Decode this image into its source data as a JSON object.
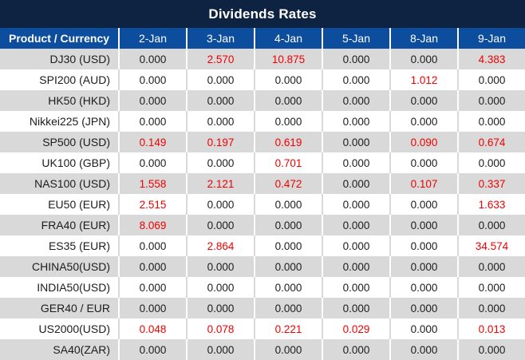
{
  "title": "Dividends Rates",
  "colors": {
    "title_bg": "#0e2242",
    "header_bg": "#0d4d9e",
    "header_text": "#ffffff",
    "row_alt_bg": "#d9d9d9",
    "row_bg": "#ffffff",
    "value_text": "#1c1c1c",
    "nonzero_value_red": "#f20000"
  },
  "chart_data": {
    "type": "table",
    "title": "Dividends Rates",
    "corner_header": "Product / Currency",
    "columns": [
      "2-Jan",
      "3-Jan",
      "4-Jan",
      "5-Jan",
      "8-Jan",
      "9-Jan"
    ],
    "rows": [
      {
        "product": "DJ30 (USD)",
        "values": [
          "0.000",
          "2.570",
          "10.875",
          "0.000",
          "0.000",
          "4.383"
        ]
      },
      {
        "product": "SPI200 (AUD)",
        "values": [
          "0.000",
          "0.000",
          "0.000",
          "0.000",
          "1.012",
          "0.000"
        ]
      },
      {
        "product": "HK50 (HKD)",
        "values": [
          "0.000",
          "0.000",
          "0.000",
          "0.000",
          "0.000",
          "0.000"
        ]
      },
      {
        "product": "Nikkei225 (JPN)",
        "values": [
          "0.000",
          "0.000",
          "0.000",
          "0.000",
          "0.000",
          "0.000"
        ]
      },
      {
        "product": "SP500 (USD)",
        "values": [
          "0.149",
          "0.197",
          "0.619",
          "0.000",
          "0.090",
          "0.674"
        ]
      },
      {
        "product": "UK100 (GBP)",
        "values": [
          "0.000",
          "0.000",
          "0.701",
          "0.000",
          "0.000",
          "0.000"
        ]
      },
      {
        "product": "NAS100 (USD)",
        "values": [
          "1.558",
          "2.121",
          "0.472",
          "0.000",
          "0.107",
          "0.337"
        ]
      },
      {
        "product": "EU50 (EUR)",
        "values": [
          "2.515",
          "0.000",
          "0.000",
          "0.000",
          "0.000",
          "1.633"
        ]
      },
      {
        "product": "FRA40 (EUR)",
        "values": [
          "8.069",
          "0.000",
          "0.000",
          "0.000",
          "0.000",
          "0.000"
        ]
      },
      {
        "product": "ES35 (EUR)",
        "values": [
          "0.000",
          "2.864",
          "0.000",
          "0.000",
          "0.000",
          "34.574"
        ]
      },
      {
        "product": "CHINA50(USD)",
        "values": [
          "0.000",
          "0.000",
          "0.000",
          "0.000",
          "0.000",
          "0.000"
        ]
      },
      {
        "product": "INDIA50(USD)",
        "values": [
          "0.000",
          "0.000",
          "0.000",
          "0.000",
          "0.000",
          "0.000"
        ]
      },
      {
        "product": "GER40 / EUR",
        "values": [
          "0.000",
          "0.000",
          "0.000",
          "0.000",
          "0.000",
          "0.000"
        ]
      },
      {
        "product": "US2000(USD)",
        "values": [
          "0.048",
          "0.078",
          "0.221",
          "0.029",
          "0.000",
          "0.013"
        ]
      },
      {
        "product": "SA40(ZAR)",
        "values": [
          "0.000",
          "0.000",
          "0.000",
          "0.000",
          "0.000",
          "0.000"
        ]
      }
    ],
    "value_color_rule": "non-zero values rendered in red, zero values in dark gray/black"
  }
}
